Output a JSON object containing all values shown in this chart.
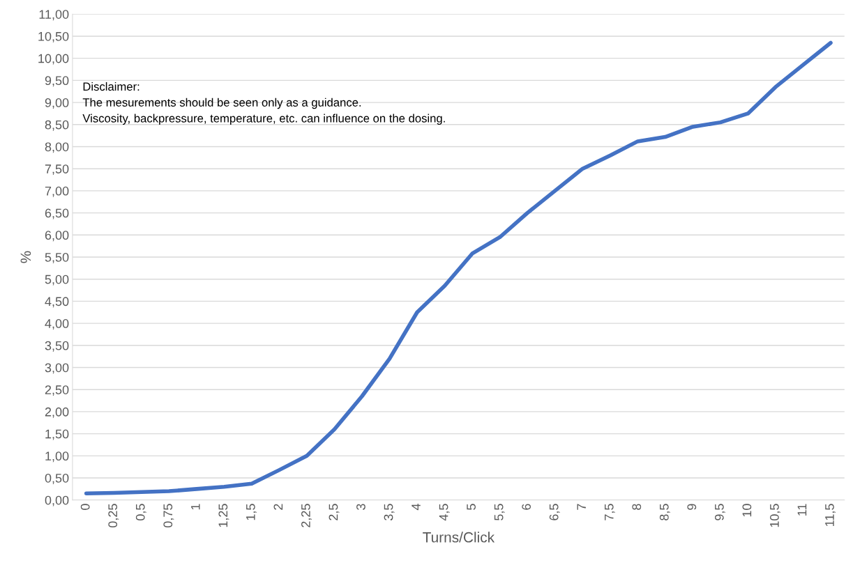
{
  "chart_data": {
    "type": "line",
    "xlabel": "Turns/Click",
    "ylabel": "%",
    "categories": [
      "0",
      "0,25",
      "0,5",
      "0,75",
      "1",
      "1,25",
      "1,5",
      "2",
      "2,25",
      "2,5",
      "3",
      "3,5",
      "4",
      "4,5",
      "5",
      "5,5",
      "6",
      "6,5",
      "7",
      "7,5",
      "8",
      "8,5",
      "9",
      "9,5",
      "10",
      "10,5",
      "11",
      "11,5"
    ],
    "series": [
      {
        "color": "#4472c4",
        "values": [
          0.15,
          0.16,
          0.18,
          0.2,
          0.25,
          0.3,
          0.37,
          0.68,
          1.0,
          1.6,
          2.35,
          3.2,
          4.25,
          4.85,
          5.58,
          5.95,
          6.5,
          7.0,
          7.5,
          7.8,
          8.12,
          8.22,
          8.45,
          8.55,
          8.75,
          9.35,
          9.85,
          10.35
        ]
      }
    ],
    "ylim": [
      0,
      11
    ],
    "yticks": [
      {
        "value": 0,
        "label": "0,00"
      },
      {
        "value": 0.5,
        "label": "0,50"
      },
      {
        "value": 1,
        "label": "1,00"
      },
      {
        "value": 1.5,
        "label": "1,50"
      },
      {
        "value": 2,
        "label": "2,00"
      },
      {
        "value": 2.5,
        "label": "2,50"
      },
      {
        "value": 3,
        "label": "3,00"
      },
      {
        "value": 3.5,
        "label": "3,50"
      },
      {
        "value": 4,
        "label": "4,00"
      },
      {
        "value": 4.5,
        "label": "4,50"
      },
      {
        "value": 5,
        "label": "5,00"
      },
      {
        "value": 5.5,
        "label": "5,50"
      },
      {
        "value": 6,
        "label": "6,00"
      },
      {
        "value": 6.5,
        "label": "6,50"
      },
      {
        "value": 7,
        "label": "7,00"
      },
      {
        "value": 7.5,
        "label": "7,50"
      },
      {
        "value": 8,
        "label": "8,00"
      },
      {
        "value": 8.5,
        "label": "8,50"
      },
      {
        "value": 9,
        "label": "9,00"
      },
      {
        "value": 9.5,
        "label": "9,50"
      },
      {
        "value": 10,
        "label": "10,00"
      },
      {
        "value": 10.5,
        "label": "10,50"
      },
      {
        "value": 11,
        "label": "11,00"
      }
    ],
    "grid": "y",
    "line_style": "solid",
    "marker": "none",
    "annotations": [
      "Disclaimer:\nThe mesurements should be seen only as a guidance.\nViscosity, backpressure, temperature, etc. can influence on the dosing."
    ]
  }
}
